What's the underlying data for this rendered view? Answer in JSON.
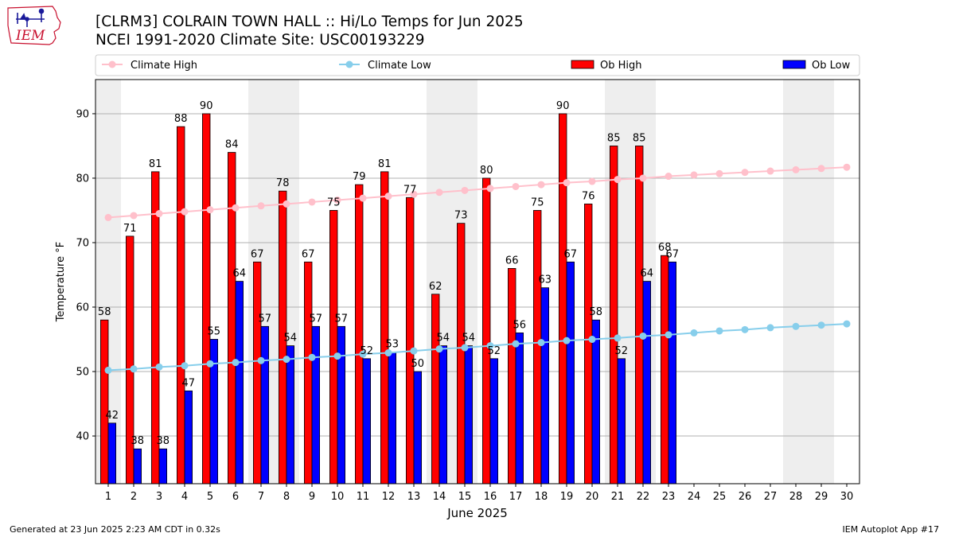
{
  "logo": {
    "text": "IEM",
    "color": "#c8102e",
    "icon": "iowa-state-outline-icon"
  },
  "title": {
    "line1": "[CLRM3] COLRAIN TOWN HALL :: Hi/Lo Temps for Jun 2025",
    "line2": "NCEI 1991-2020 Climate Site: USC00193229"
  },
  "footer": {
    "left": "Generated at 23 Jun 2025 2:23 AM CDT in 0.32s",
    "right": "IEM Autoplot App #17"
  },
  "chart_data": {
    "type": "bar",
    "xlabel": "June 2025",
    "ylabel": "Temperature °F",
    "ylim": [
      32.6,
      95.3
    ],
    "xlim": [
      0.5,
      30.5
    ],
    "yticks": [
      40,
      50,
      60,
      70,
      80,
      90
    ],
    "grid": "horizontal",
    "legend_position": "top",
    "categories": [
      "1",
      "2",
      "3",
      "4",
      "5",
      "6",
      "7",
      "8",
      "9",
      "10",
      "11",
      "12",
      "13",
      "14",
      "15",
      "16",
      "17",
      "18",
      "19",
      "20",
      "21",
      "22",
      "23",
      "24",
      "25",
      "26",
      "27",
      "28",
      "29",
      "30"
    ],
    "weekend_shading": [
      [
        1,
        1
      ],
      [
        7,
        8
      ],
      [
        14,
        15
      ],
      [
        21,
        22
      ],
      [
        28,
        29
      ]
    ],
    "series": [
      {
        "name": "Climate High",
        "kind": "line",
        "color": "#ffc0cb",
        "values": [
          73.9,
          74.2,
          74.5,
          74.8,
          75.1,
          75.4,
          75.7,
          76.0,
          76.3,
          76.6,
          76.9,
          77.2,
          77.5,
          77.8,
          78.1,
          78.4,
          78.7,
          79.0,
          79.3,
          79.5,
          79.8,
          80.0,
          80.3,
          80.5,
          80.7,
          80.9,
          81.1,
          81.3,
          81.5,
          81.7
        ]
      },
      {
        "name": "Climate Low",
        "kind": "line",
        "color": "#87ceeb",
        "values": [
          50.2,
          50.4,
          50.7,
          50.9,
          51.2,
          51.4,
          51.7,
          51.9,
          52.2,
          52.4,
          52.7,
          52.9,
          53.2,
          53.5,
          53.7,
          54.0,
          54.3,
          54.5,
          54.8,
          55.0,
          55.2,
          55.5,
          55.7,
          56.0,
          56.3,
          56.5,
          56.8,
          57.0,
          57.2,
          57.4
        ]
      },
      {
        "name": "Ob High",
        "kind": "bar",
        "color": "#ff0000",
        "values": [
          58,
          71,
          81,
          88,
          90,
          84,
          67,
          78,
          67,
          75,
          79,
          81,
          77,
          62,
          73,
          80,
          66,
          75,
          90,
          76,
          85,
          85,
          68,
          null,
          null,
          null,
          null,
          null,
          null,
          null
        ]
      },
      {
        "name": "Ob Low",
        "kind": "bar",
        "color": "#0000ff",
        "values": [
          42,
          38,
          38,
          47,
          55,
          64,
          57,
          54,
          57,
          57,
          52,
          53,
          50,
          54,
          54,
          52,
          56,
          63,
          67,
          58,
          52,
          64,
          67,
          null,
          null,
          null,
          null,
          null,
          null,
          null
        ]
      }
    ]
  }
}
